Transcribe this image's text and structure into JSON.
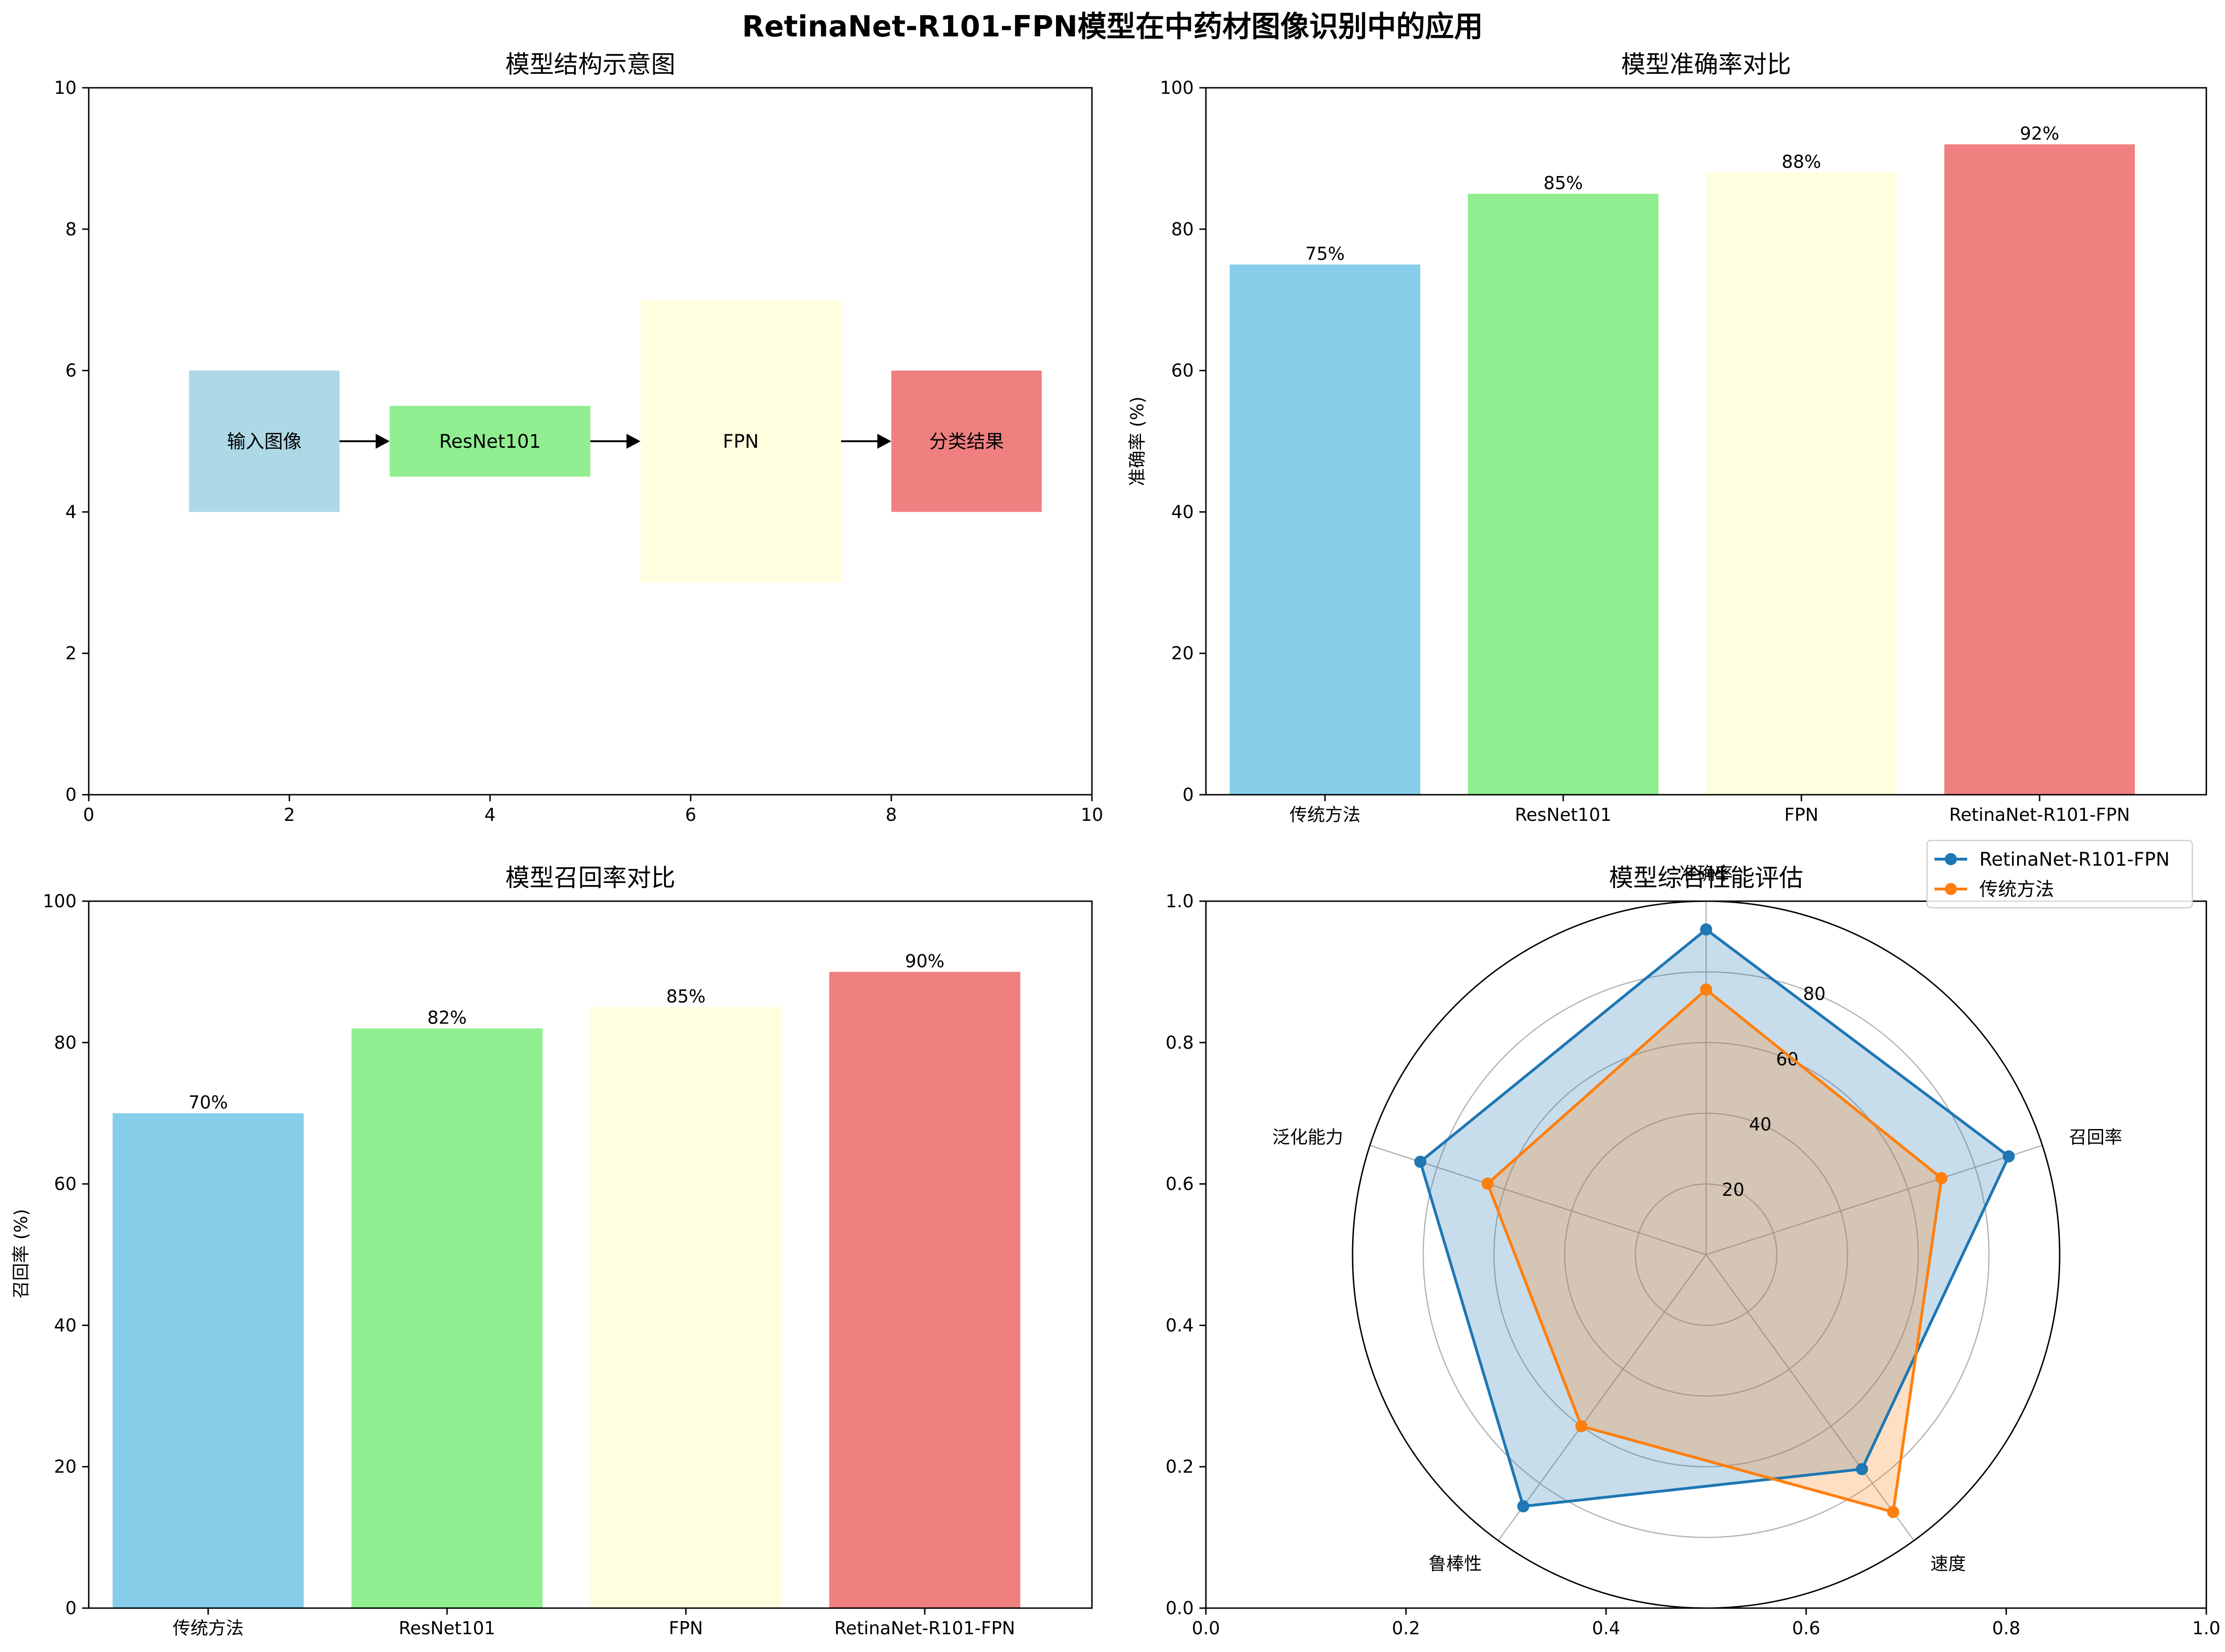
{
  "figure": {
    "title": "RetinaNet-R101-FPN模型在中药材图像识别中的应用"
  },
  "colors": {
    "skyblue": "#87CEEB",
    "lightgreen": "#90EE90",
    "lightyellow": "#FFFFE0",
    "lightcoral": "#F08080",
    "lightblue": "#ADD8E6",
    "series_blue": "#1f77b4",
    "series_orange": "#ff7f0e"
  },
  "chart_data": [
    {
      "type": "diagram",
      "title": "模型结构示意图",
      "xlim": [
        0,
        10
      ],
      "ylim": [
        0,
        10
      ],
      "xticks": [
        "0",
        "2",
        "4",
        "6",
        "8",
        "10"
      ],
      "yticks": [
        "0",
        "2",
        "4",
        "6",
        "8",
        "10"
      ],
      "boxes": [
        {
          "label": "输入图像",
          "x": 1,
          "y": 4,
          "w": 1.5,
          "h": 2,
          "color": "#ADD8E6"
        },
        {
          "label": "ResNet101",
          "x": 3,
          "y": 4.5,
          "w": 2,
          "h": 1,
          "color": "#90EE90"
        },
        {
          "label": "FPN",
          "x": 5.5,
          "y": 3,
          "w": 2,
          "h": 4,
          "color": "#FFFFE0"
        },
        {
          "label": "分类结果",
          "x": 8,
          "y": 4,
          "w": 1.5,
          "h": 2,
          "color": "#F08080"
        }
      ],
      "arrows": [
        {
          "x1": 2.5,
          "x2": 3.0,
          "y": 5
        },
        {
          "x1": 5.0,
          "x2": 5.5,
          "y": 5
        },
        {
          "x1": 7.5,
          "x2": 8.0,
          "y": 5
        }
      ]
    },
    {
      "type": "bar",
      "title": "模型准确率对比",
      "xlabel": "",
      "ylabel": "准确率 (%)",
      "ylim": [
        0,
        100
      ],
      "yticks": [
        "0",
        "20",
        "40",
        "60",
        "80",
        "100"
      ],
      "categories": [
        "传统方法",
        "ResNet101",
        "FPN",
        "RetinaNet-R101-FPN"
      ],
      "values": [
        75,
        85,
        88,
        92
      ],
      "value_labels": [
        "75%",
        "85%",
        "88%",
        "92%"
      ],
      "colors": [
        "#87CEEB",
        "#90EE90",
        "#FFFFE0",
        "#F08080"
      ]
    },
    {
      "type": "bar",
      "title": "模型召回率对比",
      "xlabel": "",
      "ylabel": "召回率 (%)",
      "ylim": [
        0,
        100
      ],
      "yticks": [
        "0",
        "20",
        "40",
        "60",
        "80",
        "100"
      ],
      "categories": [
        "传统方法",
        "ResNet101",
        "FPN",
        "RetinaNet-R101-FPN"
      ],
      "values": [
        70,
        82,
        85,
        90
      ],
      "value_labels": [
        "70%",
        "82%",
        "85%",
        "90%"
      ],
      "colors": [
        "#87CEEB",
        "#90EE90",
        "#FFFFE0",
        "#F08080"
      ]
    },
    {
      "type": "radar",
      "title": "模型综合性能评估",
      "categories": [
        "准确率",
        "召回率",
        "速度",
        "鲁棒性",
        "泛化能力"
      ],
      "rmax": 100,
      "rticks": [
        "20",
        "40",
        "60",
        "80"
      ],
      "outer_xticks": [
        "0.0",
        "0.2",
        "0.4",
        "0.6",
        "0.8",
        "1.0"
      ],
      "outer_yticks": [
        "0.0",
        "0.2",
        "0.4",
        "0.6",
        "0.8",
        "1.0"
      ],
      "legend_position": "upper-right",
      "series": [
        {
          "name": "RetinaNet-R101-FPN",
          "values": [
            92,
            90,
            75,
            88,
            85
          ],
          "color": "#1f77b4"
        },
        {
          "name": "传统方法",
          "values": [
            75,
            70,
            90,
            60,
            65
          ],
          "color": "#ff7f0e"
        }
      ]
    }
  ]
}
